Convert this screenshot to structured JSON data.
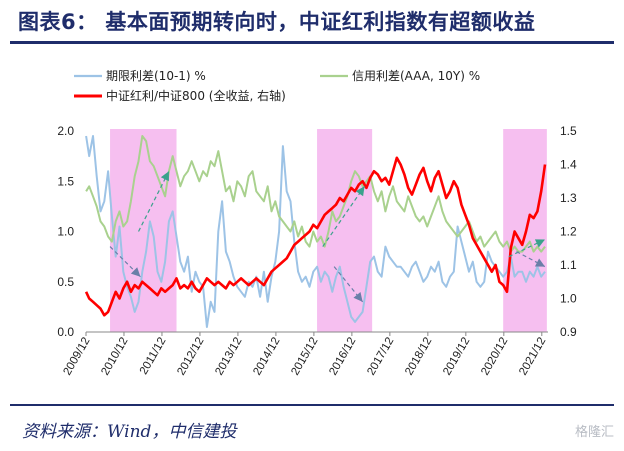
{
  "title": "图表6： 基本面预期转向时，中证红利指数有超额收益",
  "source": "资料来源：Wind，中信建投",
  "watermark": "格隆汇",
  "chart_data": {
    "type": "line",
    "legend": [
      {
        "name": "期限利差(10-1) %",
        "color": "#9dc3e6"
      },
      {
        "name": "信用利差(AAA, 10Y) %",
        "color": "#a9d18e"
      },
      {
        "name": "中证红利/中证800 (全收益, 右轴)",
        "color": "#ff0000"
      }
    ],
    "x_axis": {
      "start": 2009.917,
      "end": 2022.08,
      "ticks": [
        "2009/12",
        "2010/12",
        "2011/12",
        "2012/12",
        "2013/12",
        "2014/12",
        "2015/12",
        "2016/12",
        "2017/12",
        "2018/12",
        "2019/12",
        "2020/12",
        "2021/12"
      ]
    },
    "y_left": {
      "min": 0,
      "max": 2,
      "ticks": [
        "0.0",
        "0.5",
        "1.0",
        "1.5",
        "2.0"
      ]
    },
    "y_right": {
      "min": 0.9,
      "max": 1.5,
      "ticks": [
        "0.9",
        "1.0",
        "1.1",
        "1.2",
        "1.3",
        "1.4",
        "1.5"
      ]
    },
    "highlight_periods": [
      {
        "start": 2010.55,
        "end": 2012.3,
        "color": "#f5b8ee"
      },
      {
        "start": 2016.0,
        "end": 2017.45,
        "color": "#f5b8ee"
      },
      {
        "start": 2020.9,
        "end": 2022.05,
        "color": "#f5b8ee"
      }
    ],
    "series": [
      {
        "name": "期限利差(10-1) %",
        "axis": "left",
        "color": "#9dc3e6",
        "x": [
          2009.92,
          2010.0,
          2010.1,
          2010.2,
          2010.3,
          2010.4,
          2010.5,
          2010.6,
          2010.7,
          2010.8,
          2010.9,
          2011.0,
          2011.1,
          2011.2,
          2011.3,
          2011.4,
          2011.5,
          2011.6,
          2011.7,
          2011.8,
          2011.9,
          2012.0,
          2012.1,
          2012.2,
          2012.3,
          2012.4,
          2012.5,
          2012.6,
          2012.7,
          2012.8,
          2012.9,
          2013.0,
          2013.1,
          2013.2,
          2013.3,
          2013.4,
          2013.5,
          2013.6,
          2013.7,
          2013.8,
          2013.9,
          2014.0,
          2014.1,
          2014.2,
          2014.3,
          2014.4,
          2014.5,
          2014.6,
          2014.7,
          2014.8,
          2014.9,
          2015.0,
          2015.1,
          2015.2,
          2015.3,
          2015.4,
          2015.5,
          2015.6,
          2015.7,
          2015.8,
          2015.9,
          2016.0,
          2016.1,
          2016.2,
          2016.3,
          2016.4,
          2016.5,
          2016.6,
          2016.7,
          2016.8,
          2016.9,
          2017.0,
          2017.1,
          2017.2,
          2017.3,
          2017.4,
          2017.5,
          2017.6,
          2017.7,
          2017.8,
          2017.9,
          2018.0,
          2018.1,
          2018.2,
          2018.3,
          2018.4,
          2018.5,
          2018.6,
          2018.7,
          2018.8,
          2018.9,
          2019.0,
          2019.1,
          2019.2,
          2019.3,
          2019.4,
          2019.5,
          2019.6,
          2019.7,
          2019.8,
          2019.9,
          2020.0,
          2020.1,
          2020.2,
          2020.3,
          2020.4,
          2020.5,
          2020.6,
          2020.7,
          2020.8,
          2020.9,
          2021.0,
          2021.1,
          2021.2,
          2021.3,
          2021.4,
          2021.5,
          2021.6,
          2021.7,
          2021.8,
          2021.9,
          2022.0
        ],
        "y": [
          1.95,
          1.75,
          1.95,
          1.55,
          1.2,
          1.3,
          1.6,
          1.15,
          0.75,
          1.05,
          0.6,
          0.45,
          0.35,
          0.2,
          0.3,
          0.6,
          0.8,
          1.1,
          0.95,
          0.6,
          0.5,
          0.7,
          1.1,
          1.2,
          0.95,
          0.7,
          0.6,
          0.75,
          0.4,
          0.6,
          0.5,
          0.45,
          0.05,
          0.3,
          0.2,
          1.0,
          1.3,
          0.8,
          0.7,
          0.55,
          0.45,
          0.4,
          0.35,
          0.5,
          0.45,
          0.55,
          0.35,
          0.6,
          0.3,
          0.55,
          0.7,
          1.0,
          1.85,
          1.4,
          1.3,
          0.9,
          0.6,
          0.5,
          0.55,
          0.45,
          0.6,
          0.65,
          0.5,
          0.6,
          0.55,
          0.4,
          0.55,
          0.65,
          0.45,
          0.3,
          0.15,
          0.1,
          0.15,
          0.2,
          0.45,
          0.7,
          0.75,
          0.6,
          0.55,
          0.85,
          0.75,
          0.7,
          0.65,
          0.65,
          0.6,
          0.55,
          0.65,
          0.7,
          0.6,
          0.5,
          0.55,
          0.65,
          0.6,
          0.7,
          0.5,
          0.45,
          0.55,
          0.6,
          1.05,
          0.9,
          0.75,
          0.6,
          0.7,
          0.5,
          0.45,
          0.5,
          0.8,
          0.7,
          0.65,
          0.6,
          0.55,
          0.6,
          0.75,
          0.55,
          0.6,
          0.6,
          0.5,
          0.6,
          0.55,
          0.65,
          0.55,
          0.6
        ]
      },
      {
        "name": "信用利差(AAA, 10Y) %",
        "axis": "left",
        "color": "#a9d18e",
        "x": [
          2009.92,
          2010.0,
          2010.1,
          2010.2,
          2010.3,
          2010.4,
          2010.5,
          2010.6,
          2010.7,
          2010.8,
          2010.9,
          2011.0,
          2011.1,
          2011.2,
          2011.3,
          2011.4,
          2011.5,
          2011.6,
          2011.7,
          2011.8,
          2011.9,
          2012.0,
          2012.1,
          2012.2,
          2012.3,
          2012.4,
          2012.5,
          2012.6,
          2012.7,
          2012.8,
          2012.9,
          2013.0,
          2013.1,
          2013.2,
          2013.3,
          2013.4,
          2013.5,
          2013.6,
          2013.7,
          2013.8,
          2013.9,
          2014.0,
          2014.1,
          2014.2,
          2014.3,
          2014.4,
          2014.5,
          2014.6,
          2014.7,
          2014.8,
          2014.9,
          2015.0,
          2015.1,
          2015.2,
          2015.3,
          2015.4,
          2015.5,
          2015.6,
          2015.7,
          2015.8,
          2015.9,
          2016.0,
          2016.1,
          2016.2,
          2016.3,
          2016.4,
          2016.5,
          2016.6,
          2016.7,
          2016.8,
          2016.9,
          2017.0,
          2017.1,
          2017.2,
          2017.3,
          2017.4,
          2017.5,
          2017.6,
          2017.7,
          2017.8,
          2017.9,
          2018.0,
          2018.1,
          2018.2,
          2018.3,
          2018.4,
          2018.5,
          2018.6,
          2018.7,
          2018.8,
          2018.9,
          2019.0,
          2019.1,
          2019.2,
          2019.3,
          2019.4,
          2019.5,
          2019.6,
          2019.7,
          2019.8,
          2019.9,
          2020.0,
          2020.1,
          2020.2,
          2020.3,
          2020.4,
          2020.5,
          2020.6,
          2020.7,
          2020.8,
          2020.9,
          2021.0,
          2021.1,
          2021.2,
          2021.3,
          2021.4,
          2021.5,
          2021.6,
          2021.7,
          2021.8,
          2021.9,
          2022.0
        ],
        "y": [
          1.4,
          1.45,
          1.35,
          1.25,
          1.1,
          1.05,
          0.95,
          0.9,
          1.1,
          1.2,
          1.05,
          1.1,
          1.3,
          1.55,
          1.7,
          1.95,
          1.9,
          1.7,
          1.65,
          1.55,
          1.45,
          1.35,
          1.6,
          1.75,
          1.6,
          1.45,
          1.55,
          1.6,
          1.7,
          1.6,
          1.5,
          1.6,
          1.55,
          1.7,
          1.65,
          1.8,
          1.6,
          1.4,
          1.45,
          1.3,
          1.5,
          1.45,
          1.35,
          1.55,
          1.6,
          1.4,
          1.35,
          1.3,
          1.45,
          1.2,
          1.3,
          1.15,
          1.1,
          1.05,
          1.0,
          1.1,
          0.95,
          1.05,
          0.9,
          0.85,
          1.0,
          0.9,
          0.95,
          0.85,
          1.0,
          1.2,
          1.1,
          1.15,
          1.25,
          1.35,
          1.5,
          1.6,
          1.55,
          1.45,
          1.5,
          1.55,
          1.4,
          1.3,
          1.4,
          1.2,
          1.35,
          1.45,
          1.3,
          1.25,
          1.2,
          1.35,
          1.25,
          1.15,
          1.1,
          1.15,
          1.05,
          1.15,
          1.25,
          1.35,
          1.2,
          1.1,
          1.05,
          1.0,
          0.95,
          1.0,
          1.05,
          1.1,
          1.0,
          0.9,
          0.95,
          0.85,
          0.9,
          0.95,
          1.0,
          0.9,
          0.85,
          0.9,
          0.8,
          0.85,
          0.8,
          0.8,
          0.85,
          0.9,
          0.8,
          0.85,
          0.8,
          0.85
        ]
      },
      {
        "name": "中证红利/中证800 (全收益, 右轴)",
        "axis": "right",
        "color": "#ff0000",
        "x": [
          2009.92,
          2010.0,
          2010.1,
          2010.2,
          2010.3,
          2010.4,
          2010.5,
          2010.6,
          2010.7,
          2010.8,
          2010.9,
          2011.0,
          2011.1,
          2011.2,
          2011.3,
          2011.4,
          2011.5,
          2011.6,
          2011.7,
          2011.8,
          2011.9,
          2012.0,
          2012.1,
          2012.2,
          2012.3,
          2012.4,
          2012.5,
          2012.6,
          2012.7,
          2012.8,
          2012.9,
          2013.0,
          2013.1,
          2013.2,
          2013.3,
          2013.4,
          2013.5,
          2013.6,
          2013.7,
          2013.8,
          2013.9,
          2014.0,
          2014.1,
          2014.2,
          2014.3,
          2014.4,
          2014.5,
          2014.6,
          2014.7,
          2014.8,
          2014.9,
          2015.0,
          2015.1,
          2015.2,
          2015.3,
          2015.4,
          2015.5,
          2015.6,
          2015.7,
          2015.8,
          2015.9,
          2016.0,
          2016.1,
          2016.2,
          2016.3,
          2016.4,
          2016.5,
          2016.6,
          2016.7,
          2016.8,
          2016.9,
          2017.0,
          2017.1,
          2017.2,
          2017.3,
          2017.4,
          2017.5,
          2017.6,
          2017.7,
          2017.8,
          2017.9,
          2018.0,
          2018.1,
          2018.2,
          2018.3,
          2018.4,
          2018.5,
          2018.6,
          2018.7,
          2018.8,
          2018.9,
          2019.0,
          2019.1,
          2019.2,
          2019.3,
          2019.4,
          2019.5,
          2019.6,
          2019.7,
          2019.8,
          2019.9,
          2020.0,
          2020.1,
          2020.2,
          2020.3,
          2020.4,
          2020.5,
          2020.6,
          2020.7,
          2020.8,
          2020.9,
          2021.0,
          2021.1,
          2021.2,
          2021.3,
          2021.4,
          2021.5,
          2021.6,
          2021.7,
          2021.8,
          2021.9,
          2022.0
        ],
        "y": [
          1.02,
          1.0,
          0.99,
          0.98,
          0.97,
          0.95,
          0.96,
          0.99,
          1.02,
          1.0,
          1.03,
          1.05,
          1.02,
          1.04,
          1.03,
          1.05,
          1.04,
          1.03,
          1.02,
          1.01,
          1.03,
          1.02,
          1.03,
          1.04,
          1.06,
          1.03,
          1.04,
          1.03,
          1.05,
          1.03,
          1.02,
          1.04,
          1.06,
          1.05,
          1.04,
          1.05,
          1.04,
          1.03,
          1.05,
          1.04,
          1.05,
          1.06,
          1.05,
          1.04,
          1.05,
          1.06,
          1.05,
          1.04,
          1.06,
          1.08,
          1.09,
          1.1,
          1.11,
          1.12,
          1.14,
          1.16,
          1.17,
          1.18,
          1.19,
          1.2,
          1.22,
          1.21,
          1.23,
          1.25,
          1.26,
          1.27,
          1.28,
          1.3,
          1.29,
          1.31,
          1.33,
          1.32,
          1.34,
          1.35,
          1.33,
          1.36,
          1.38,
          1.37,
          1.35,
          1.36,
          1.34,
          1.38,
          1.42,
          1.4,
          1.37,
          1.33,
          1.31,
          1.34,
          1.37,
          1.39,
          1.35,
          1.32,
          1.36,
          1.38,
          1.34,
          1.3,
          1.32,
          1.35,
          1.33,
          1.28,
          1.25,
          1.22,
          1.18,
          1.16,
          1.14,
          1.12,
          1.1,
          1.08,
          1.1,
          1.05,
          1.04,
          1.02,
          1.15,
          1.2,
          1.18,
          1.16,
          1.2,
          1.25,
          1.24,
          1.26,
          1.32,
          1.4
        ]
      }
    ],
    "arrows": [
      {
        "from": [
          2011.3,
          1.0
        ],
        "to": [
          2012.1,
          1.6
        ],
        "color": "#3aa28c"
      },
      {
        "from": [
          2010.55,
          0.85
        ],
        "to": [
          2011.35,
          0.55
        ],
        "color": "#6a7fa8"
      },
      {
        "from": [
          2016.15,
          0.85
        ],
        "to": [
          2017.25,
          1.45
        ],
        "color": "#3aa28c"
      },
      {
        "from": [
          2016.45,
          0.65
        ],
        "to": [
          2017.2,
          0.3
        ],
        "color": "#6a7fa8"
      },
      {
        "from": [
          2021.05,
          0.75
        ],
        "to": [
          2022.0,
          0.92
        ],
        "color": "#3aa28c"
      },
      {
        "from": [
          2021.25,
          0.8
        ],
        "to": [
          2022.0,
          0.65
        ],
        "color": "#6a7fa8"
      }
    ]
  }
}
